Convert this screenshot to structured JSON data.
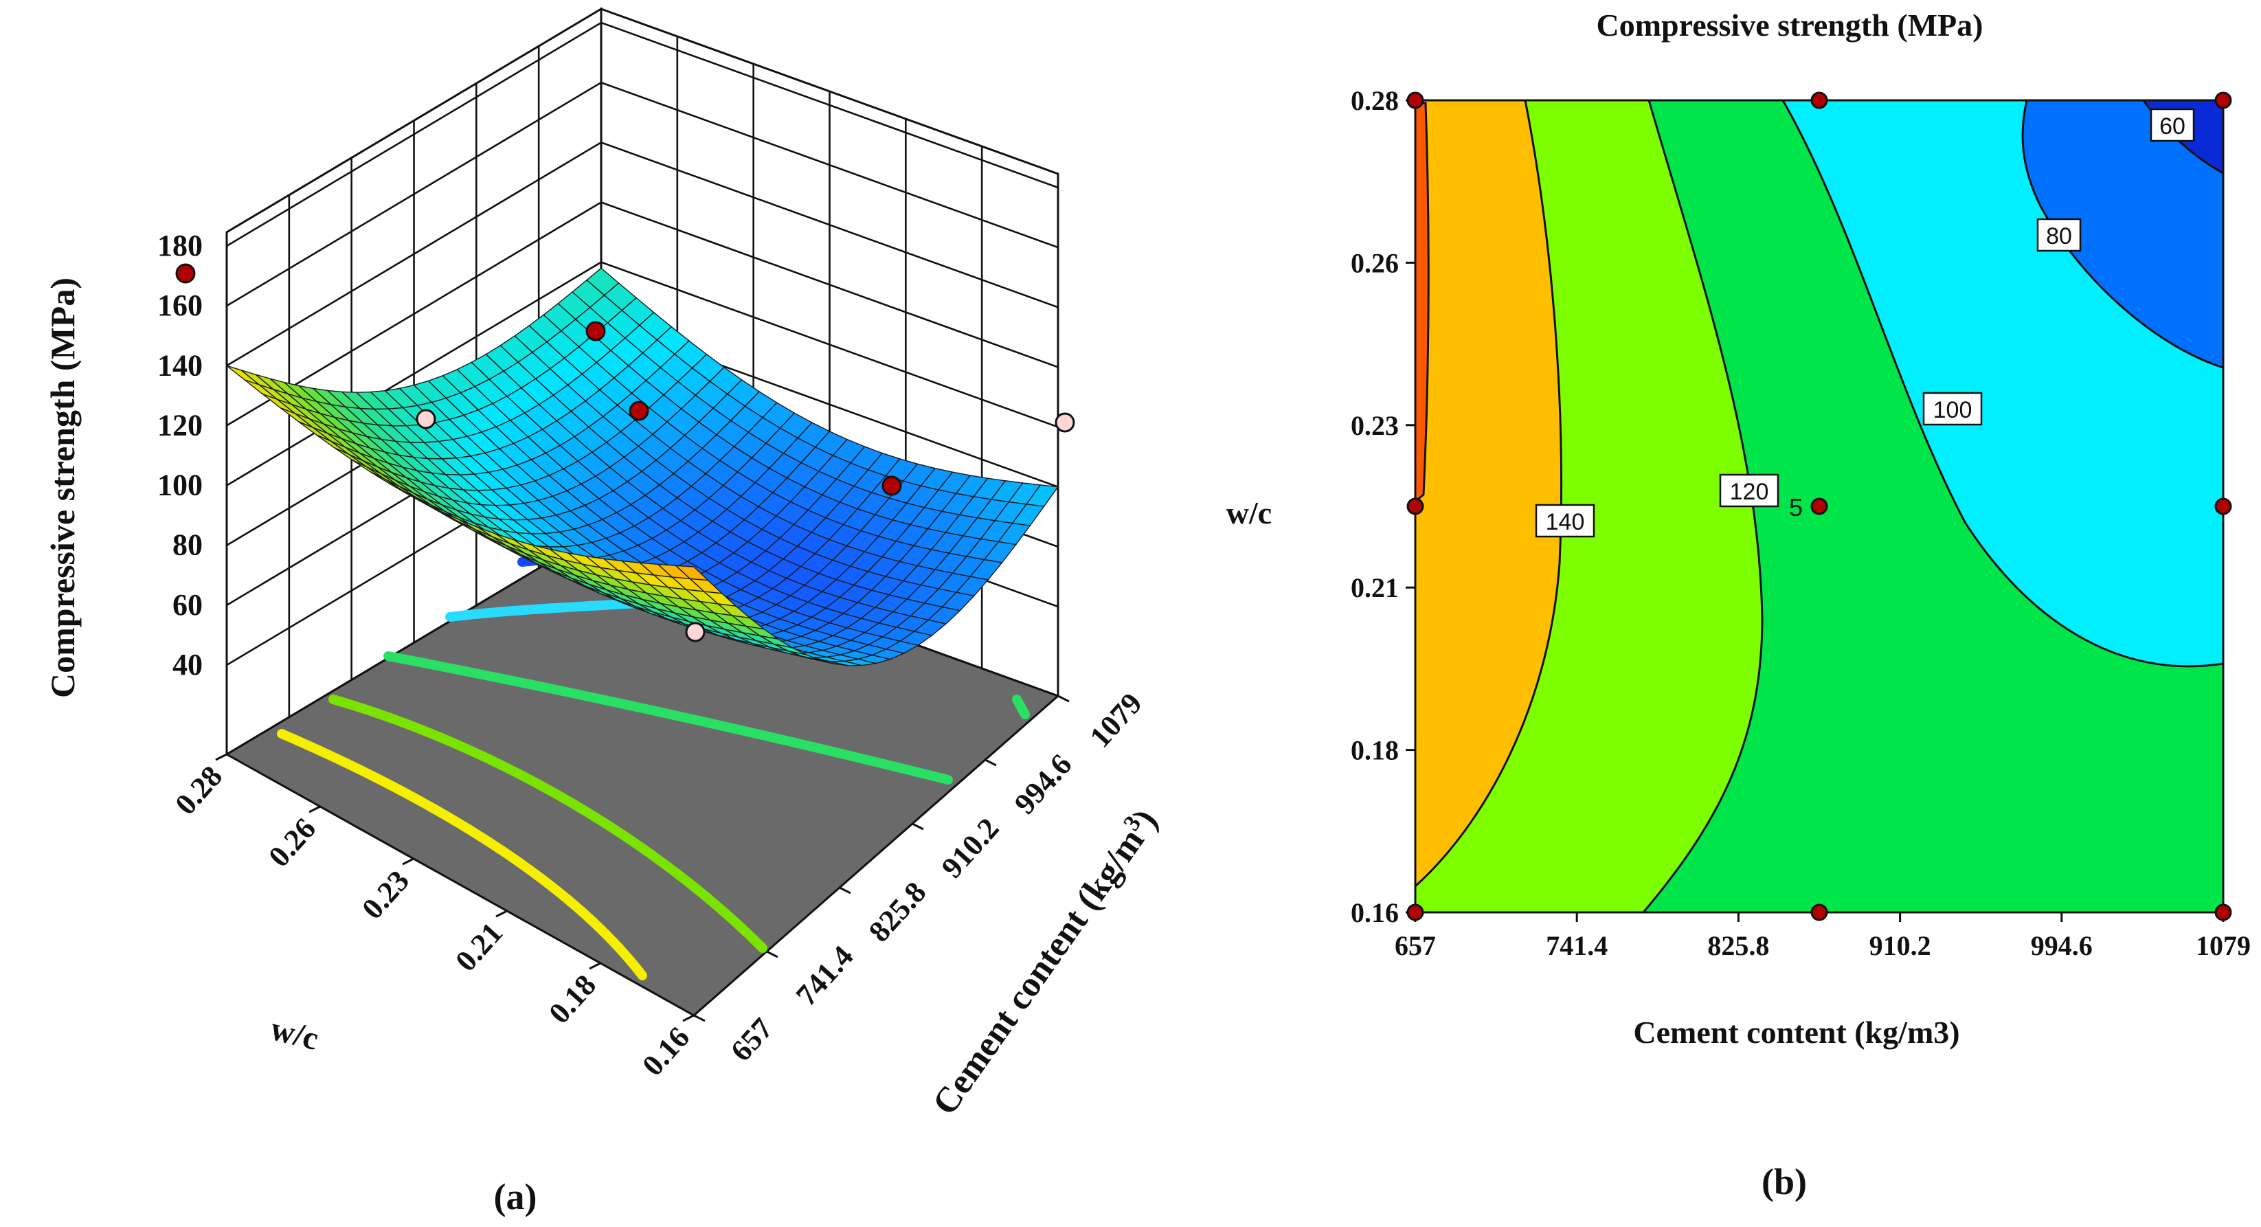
{
  "chart_data": [
    {
      "id": "a",
      "type": "surface3d",
      "panel_label": "(a)",
      "title": "",
      "zlabel": "Compressive strength (MPa)",
      "xlabel": "w/c",
      "ylabel_main": "Cement content (kg/m",
      "ylabel_sup": "3",
      "ylabel_end": ")",
      "x_ticks": [
        "0.28",
        "0.26",
        "0.23",
        "0.21",
        "0.18",
        "0.16"
      ],
      "y_ticks": [
        "657",
        "741.4",
        "825.8",
        "910.2",
        "994.6",
        "1079"
      ],
      "z_ticks": [
        "40",
        "60",
        "80",
        "100",
        "120",
        "140",
        "160",
        "180"
      ],
      "zlim": [
        40,
        180
      ],
      "xlim": [
        0.16,
        0.28
      ],
      "ylim": [
        657,
        1079
      ],
      "surface_corners": [
        {
          "wc": 0.16,
          "cement": 657,
          "strength": 160
        },
        {
          "wc": 0.28,
          "cement": 657,
          "strength": 140
        },
        {
          "wc": 0.28,
          "cement": 1079,
          "strength": 98
        },
        {
          "wc": 0.16,
          "cement": 1079,
          "strength": 80
        }
      ],
      "floor_contours": [
        {
          "level": "yellow",
          "color": "#f5ef00"
        },
        {
          "level": "light-green",
          "color": "#7be300"
        },
        {
          "level": "green",
          "color": "#2ae064"
        },
        {
          "level": "cyan",
          "color": "#27dcff"
        },
        {
          "level": "blue",
          "color": "#1248ff"
        }
      ],
      "design_points": [
        {
          "wc": 0.28,
          "cement": 657,
          "strength": 168,
          "color": "#b10000"
        },
        {
          "wc": 0.28,
          "cement": 1079,
          "strength": 102,
          "color": "#ffd6d6"
        },
        {
          "wc": 0.16,
          "cement": 1079,
          "strength": 62,
          "color": "#ffd6d6"
        },
        {
          "wc": 0.22,
          "cement": 657,
          "strength": 128,
          "color": "#ffd6d6"
        },
        {
          "wc": 0.22,
          "cement": 868,
          "strength": 120,
          "color": "#b10000"
        },
        {
          "wc": 0.16,
          "cement": 868,
          "strength": 148,
          "color": "#b10000"
        },
        {
          "wc": 0.22,
          "cement": 1079,
          "strength": 110,
          "color": "#b10000"
        }
      ]
    },
    {
      "id": "b",
      "type": "contour",
      "panel_label": "(b)",
      "title": "Compressive strength (MPa)",
      "xlabel": "Cement content (kg/m3)",
      "ylabel": "w/c",
      "x_ticks": [
        "657",
        "741.4",
        "825.8",
        "910.2",
        "994.6",
        "1079"
      ],
      "y_ticks": [
        "0.16",
        "0.18",
        "0.21",
        "0.23",
        "0.26",
        "0.28"
      ],
      "xlim": [
        657,
        1079
      ],
      "ylim": [
        0.16,
        0.28
      ],
      "levels": [
        60,
        80,
        100,
        120,
        140,
        160
      ],
      "contour_labels": [
        "60",
        "80",
        "100",
        "120",
        "140"
      ],
      "center_point_label": "5",
      "band_colors": {
        "above_160": "#ff5a00",
        "140_160": "#ffbf00",
        "120_140": "#7dff00",
        "100_120": "#00e64a",
        "80_100": "#00f0ff",
        "60_80": "#0070ff",
        "below_60": "#0a2ad8"
      },
      "design_points": [
        {
          "cement": 657,
          "wc": 0.28
        },
        {
          "cement": 868,
          "wc": 0.28
        },
        {
          "cement": 1079,
          "wc": 0.28
        },
        {
          "cement": 657,
          "wc": 0.22
        },
        {
          "cement": 868,
          "wc": 0.22
        },
        {
          "cement": 1079,
          "wc": 0.22
        },
        {
          "cement": 657,
          "wc": 0.16
        },
        {
          "cement": 868,
          "wc": 0.16
        },
        {
          "cement": 1079,
          "wc": 0.16
        }
      ]
    }
  ]
}
